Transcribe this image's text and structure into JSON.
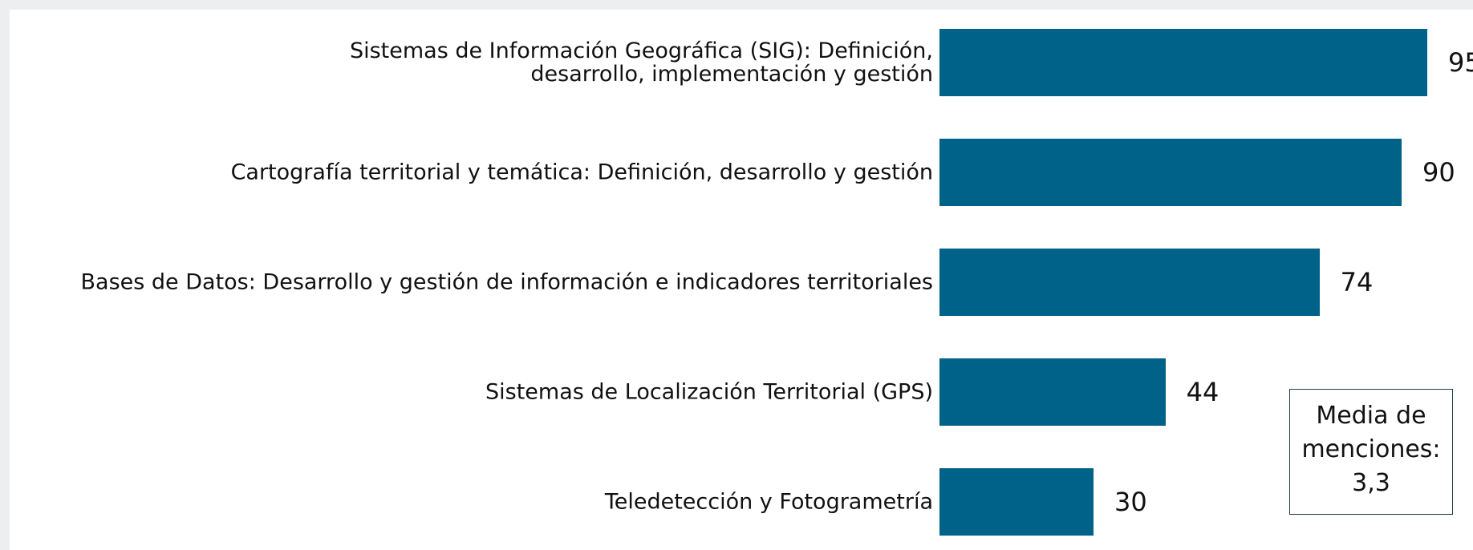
{
  "chart_data": {
    "type": "bar",
    "orientation": "horizontal",
    "categories": [
      "Sistemas de Información Geográfica (SIG): Definición,\ndesarrollo, implementación y gestión",
      "Cartografía territorial y temática: Definición, desarrollo y gestión",
      "Bases de Datos: Desarrollo y gestión de información e indicadores territoriales",
      "Sistemas de Localización Territorial (GPS)",
      "Teledetección y Fotogrametría"
    ],
    "values": [
      95,
      90,
      74,
      44,
      30
    ],
    "color": "#006189",
    "annotation": {
      "title": "Media de menciones:",
      "value": "3,3"
    }
  }
}
